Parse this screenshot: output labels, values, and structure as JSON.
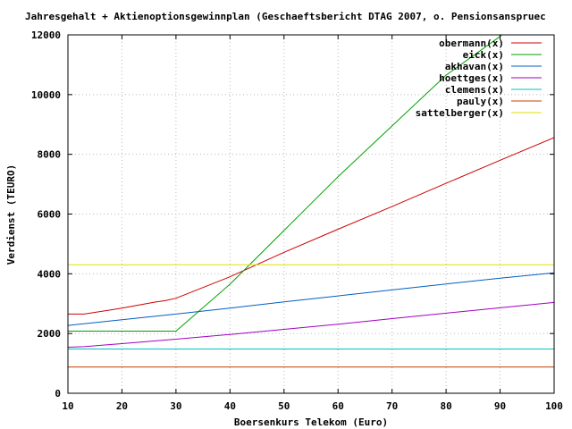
{
  "chart_data": {
    "type": "line",
    "title": "Jahresgehalt + Aktienoptionsgewinnplan (Geschaeftsbericht DTAG 2007, o. Pensionsanspruec",
    "xlabel": "Boersenkurs Telekom (Euro)",
    "ylabel": "Verdienst (TEURO)",
    "xlim": [
      10,
      100
    ],
    "ylim": [
      0,
      12000
    ],
    "xticks": [
      "10",
      "20",
      "30",
      "40",
      "50",
      "60",
      "70",
      "80",
      "90",
      "100"
    ],
    "yticks": [
      "0",
      "2000",
      "4000",
      "6000",
      "8000",
      "10000",
      "12000"
    ],
    "grid": true,
    "legend_position": "top-right",
    "series": [
      {
        "name": "obermann(x)",
        "color": "#cc0000",
        "points": [
          [
            10,
            2650
          ],
          [
            13,
            2650
          ],
          [
            20,
            2850
          ],
          [
            26,
            3050
          ],
          [
            28,
            3100
          ],
          [
            30,
            3180
          ],
          [
            40,
            3900
          ],
          [
            50,
            4720
          ],
          [
            60,
            5490
          ],
          [
            70,
            6250
          ],
          [
            80,
            7030
          ],
          [
            90,
            7800
          ],
          [
            100,
            8560
          ]
        ]
      },
      {
        "name": "eick(x)",
        "color": "#00a000",
        "points": [
          [
            10,
            2080
          ],
          [
            30,
            2080
          ],
          [
            40,
            3650
          ],
          [
            50,
            5450
          ],
          [
            60,
            7250
          ],
          [
            70,
            8950
          ],
          [
            80,
            10650
          ],
          [
            90,
            11950
          ],
          [
            90.3,
            12000
          ]
        ]
      },
      {
        "name": "akhavan(x)",
        "color": "#0060c0",
        "points": [
          [
            10,
            2270
          ],
          [
            20,
            2460
          ],
          [
            30,
            2650
          ],
          [
            40,
            2850
          ],
          [
            50,
            3060
          ],
          [
            60,
            3260
          ],
          [
            70,
            3460
          ],
          [
            80,
            3660
          ],
          [
            90,
            3850
          ],
          [
            100,
            4030
          ]
        ]
      },
      {
        "name": "hoettges(x)",
        "color": "#a000c0",
        "points": [
          [
            10,
            1540
          ],
          [
            13,
            1560
          ],
          [
            20,
            1660
          ],
          [
            30,
            1810
          ],
          [
            40,
            1970
          ],
          [
            50,
            2140
          ],
          [
            60,
            2310
          ],
          [
            70,
            2500
          ],
          [
            80,
            2680
          ],
          [
            90,
            2860
          ],
          [
            100,
            3040
          ]
        ]
      },
      {
        "name": "clemens(x)",
        "color": "#00c0c0",
        "points": [
          [
            10,
            1480
          ],
          [
            100,
            1480
          ]
        ]
      },
      {
        "name": "pauly(x)",
        "color": "#c04000",
        "points": [
          [
            10,
            880
          ],
          [
            100,
            880
          ]
        ]
      },
      {
        "name": "sattelberger(x)",
        "color": "#e0e000",
        "points": [
          [
            10,
            4300
          ],
          [
            100,
            4300
          ]
        ]
      }
    ]
  }
}
